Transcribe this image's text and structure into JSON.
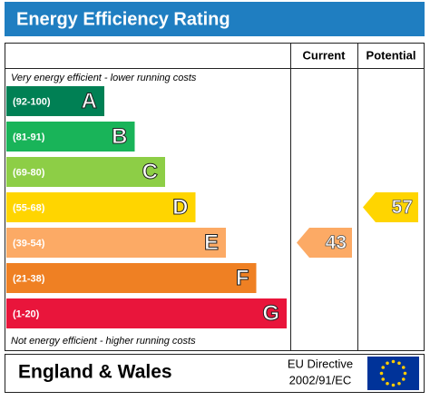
{
  "title": "Energy Efficiency Rating",
  "headers": {
    "current": "Current",
    "potential": "Potential"
  },
  "top_note": "Very energy efficient - lower running costs",
  "bottom_note": "Not energy efficient - higher running costs",
  "bands": [
    {
      "range": "(92-100)",
      "letter": "A",
      "color": "#008054"
    },
    {
      "range": "(81-91)",
      "letter": "B",
      "color": "#19b459"
    },
    {
      "range": "(69-80)",
      "letter": "C",
      "color": "#8dce46"
    },
    {
      "range": "(55-68)",
      "letter": "D",
      "color": "#ffd500"
    },
    {
      "range": "(39-54)",
      "letter": "E",
      "color": "#fcaa65"
    },
    {
      "range": "(21-38)",
      "letter": "F",
      "color": "#ef8023"
    },
    {
      "range": "(1-20)",
      "letter": "G",
      "color": "#e9153b"
    }
  ],
  "current": 43,
  "potential": 57,
  "footer": {
    "region": "England & Wales",
    "directive_line1": "EU Directive",
    "directive_line2": "2002/91/EC"
  }
}
